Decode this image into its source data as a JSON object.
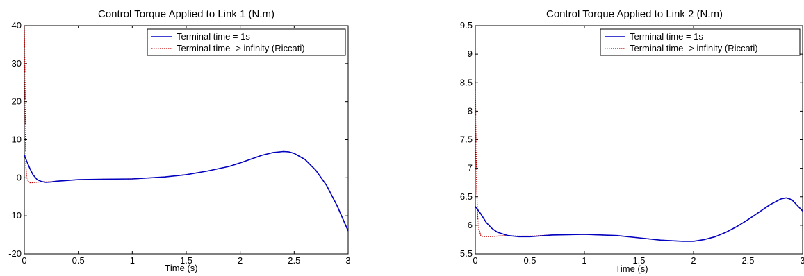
{
  "chart_data": [
    {
      "type": "line",
      "title": "Control Torque Applied to Link 1 (N.m)",
      "xlabel": "Time (s)",
      "ylabel": "",
      "xlim": [
        0,
        3
      ],
      "ylim": [
        -20,
        40
      ],
      "xticks": [
        "0",
        "0.5",
        "1",
        "1.5",
        "2",
        "2.5",
        "3"
      ],
      "yticks": [
        "-20",
        "-10",
        "0",
        "10",
        "20",
        "30",
        "40"
      ],
      "xtick_values": [
        0,
        0.5,
        1,
        1.5,
        2,
        2.5,
        3
      ],
      "ytick_values": [
        -20,
        -10,
        0,
        10,
        20,
        30,
        40
      ],
      "grid": false,
      "legend_position": "top-right",
      "series": [
        {
          "name": "Terminal time = 1s",
          "color": "#0000c0",
          "style": "solid",
          "x": [
            0,
            0.02,
            0.05,
            0.08,
            0.12,
            0.16,
            0.2,
            0.25,
            0.3,
            0.4,
            0.5,
            0.7,
            1.0,
            1.3,
            1.5,
            1.7,
            1.9,
            2.0,
            2.1,
            2.2,
            2.3,
            2.4,
            2.45,
            2.5,
            2.6,
            2.7,
            2.8,
            2.9,
            3.0
          ],
          "y": [
            6.0,
            4.5,
            2.5,
            0.8,
            -0.5,
            -1.0,
            -1.2,
            -1.1,
            -0.9,
            -0.7,
            -0.5,
            -0.4,
            -0.3,
            0.2,
            0.8,
            1.8,
            3.0,
            3.9,
            4.9,
            5.9,
            6.6,
            6.9,
            6.8,
            6.4,
            4.8,
            2.0,
            -2.0,
            -7.5,
            -14.0
          ]
        },
        {
          "name": "Terminal time -> infinity (Riccati)",
          "color": "#c00000",
          "style": "dotted",
          "x": [
            0,
            0.005,
            0.01,
            0.015,
            0.02,
            0.03,
            0.05,
            0.07,
            0.1,
            0.15,
            0.2,
            0.25,
            0.3,
            0.4,
            0.5,
            0.7,
            1.0,
            1.3,
            1.5,
            1.7,
            1.9,
            2.0,
            2.1,
            2.2,
            2.3,
            2.4,
            2.45,
            2.5,
            2.6,
            2.7,
            2.8,
            2.9,
            3.0
          ],
          "y": [
            40.0,
            28.0,
            12.0,
            3.0,
            0.5,
            -0.8,
            -1.3,
            -1.3,
            -1.2,
            -1.1,
            -1.05,
            -1.0,
            -0.9,
            -0.7,
            -0.5,
            -0.4,
            -0.3,
            0.2,
            0.8,
            1.8,
            3.0,
            3.9,
            4.9,
            5.9,
            6.6,
            6.9,
            6.8,
            6.4,
            4.8,
            2.0,
            -2.0,
            -7.5,
            -14.0
          ]
        }
      ]
    },
    {
      "type": "line",
      "title": "Control Torque Applied to Link 2 (N.m)",
      "xlabel": "Time (s)",
      "ylabel": "",
      "xlim": [
        0,
        3
      ],
      "ylim": [
        5.5,
        9.5
      ],
      "xticks": [
        "0",
        "0.5",
        "1",
        "1.5",
        "2",
        "2.5",
        "3"
      ],
      "yticks": [
        "5.5",
        "6",
        "6.5",
        "7",
        "7.5",
        "8",
        "8.5",
        "9",
        "9.5"
      ],
      "xtick_values": [
        0,
        0.5,
        1,
        1.5,
        2,
        2.5,
        3
      ],
      "ytick_values": [
        5.5,
        6,
        6.5,
        7,
        7.5,
        8,
        8.5,
        9,
        9.5
      ],
      "grid": false,
      "legend_position": "top-right",
      "series": [
        {
          "name": "Terminal time = 1s",
          "color": "#0000c0",
          "style": "solid",
          "x": [
            0,
            0.05,
            0.1,
            0.15,
            0.2,
            0.3,
            0.4,
            0.5,
            0.7,
            1.0,
            1.3,
            1.5,
            1.7,
            1.9,
            2.0,
            2.1,
            2.2,
            2.3,
            2.4,
            2.5,
            2.6,
            2.7,
            2.8,
            2.85,
            2.9,
            3.0
          ],
          "y": [
            6.33,
            6.2,
            6.05,
            5.95,
            5.88,
            5.82,
            5.8,
            5.8,
            5.83,
            5.84,
            5.82,
            5.78,
            5.74,
            5.72,
            5.72,
            5.75,
            5.8,
            5.88,
            5.98,
            6.1,
            6.23,
            6.36,
            6.46,
            6.48,
            6.45,
            6.25
          ]
        },
        {
          "name": "Terminal time -> infinity (Riccati)",
          "color": "#c00000",
          "style": "dotted",
          "x": [
            0,
            0.005,
            0.01,
            0.02,
            0.03,
            0.05,
            0.07,
            0.1,
            0.15,
            0.2,
            0.3,
            0.4,
            0.5,
            0.7,
            1.0,
            1.3,
            1.5,
            1.7,
            1.9,
            2.0,
            2.1,
            2.2,
            2.3,
            2.4,
            2.5,
            2.6,
            2.7,
            2.8,
            2.85,
            2.9,
            3.0
          ],
          "y": [
            8.6,
            7.6,
            6.9,
            6.2,
            5.95,
            5.82,
            5.8,
            5.8,
            5.8,
            5.81,
            5.82,
            5.81,
            5.81,
            5.83,
            5.84,
            5.82,
            5.78,
            5.74,
            5.72,
            5.72,
            5.75,
            5.8,
            5.88,
            5.98,
            6.1,
            6.23,
            6.36,
            6.46,
            6.48,
            6.45,
            6.25
          ]
        }
      ]
    }
  ]
}
